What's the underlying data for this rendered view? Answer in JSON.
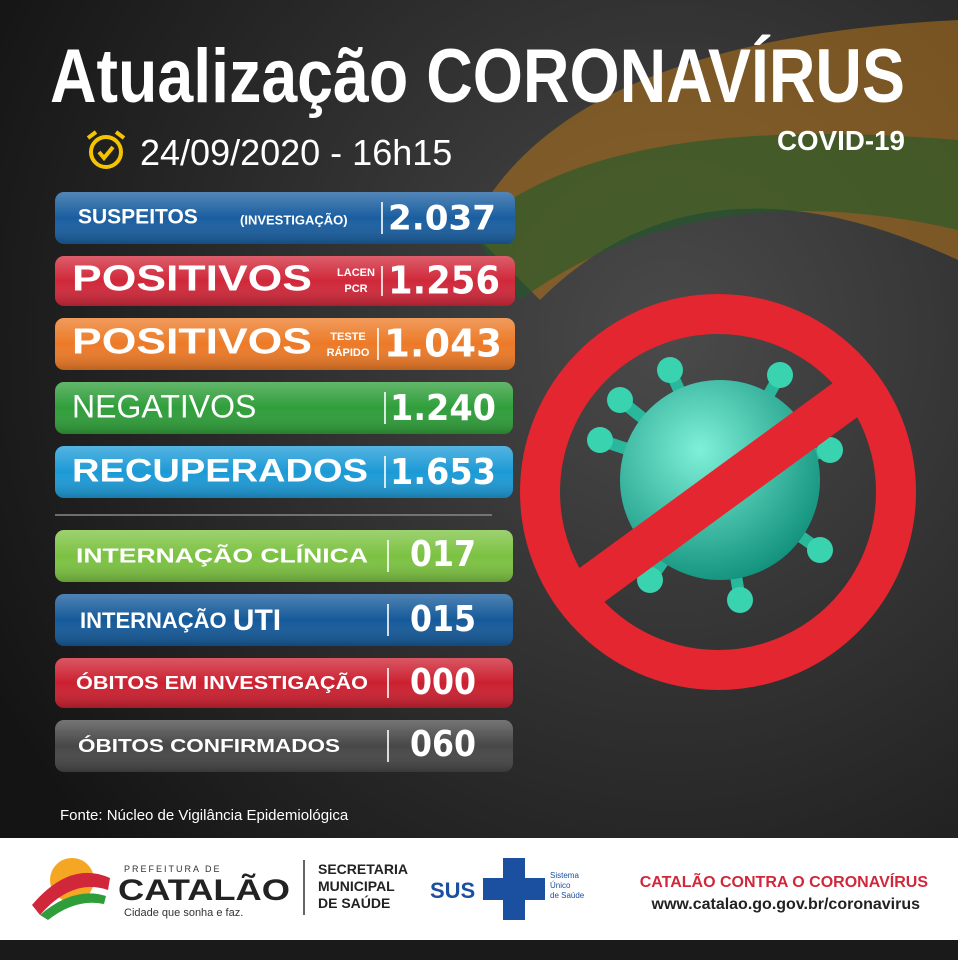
{
  "header": {
    "title_part1": "Atualização",
    "title_part2": "CORONAVÍRUS",
    "subtitle": "COVID-19",
    "date": "24/09/2020 - 16h15"
  },
  "rows": [
    {
      "label": "SUSPEITOS",
      "note": "(INVESTIGAÇÃO)",
      "value": "2.037"
    },
    {
      "label": "POSITIVOS",
      "note_lines": [
        "LACEN",
        "PCR"
      ],
      "value": "1.256"
    },
    {
      "label": "POSITIVOS",
      "note_lines": [
        "TESTE",
        "RÁPIDO"
      ],
      "value": "1.043"
    },
    {
      "label": "NEGATIVOS",
      "value": "1.240"
    },
    {
      "label": "RECUPERADOS",
      "value": "1.653"
    },
    {
      "label": "INTERNAÇÃO CLÍNICA",
      "value": "017"
    },
    {
      "label": "INTERNAÇÃO",
      "emphasis": "UTI",
      "value": "015"
    },
    {
      "label": "ÓBITOS EM INVESTIGAÇÃO",
      "value": "000"
    },
    {
      "label": "ÓBITOS CONFIRMADOS",
      "value": "060"
    }
  ],
  "source": "Fonte: Núcleo de Vigilância Epidemiológica",
  "footer": {
    "city_logo": {
      "top": "PREFEITURA DE",
      "name": "CATALÃO",
      "slogan": "Cidade que sonha e faz."
    },
    "secretaria": [
      "SECRETARIA",
      "MUNICIPAL",
      "DE SAÚDE"
    ],
    "sus": {
      "name": "SUS",
      "lines": [
        "Sistema",
        "Único",
        "de Saúde"
      ]
    },
    "campaign": "CATALÃO CONTRA O CORONAVÍRUS",
    "url": "www.catalao.go.gov.br/coronavirus"
  }
}
